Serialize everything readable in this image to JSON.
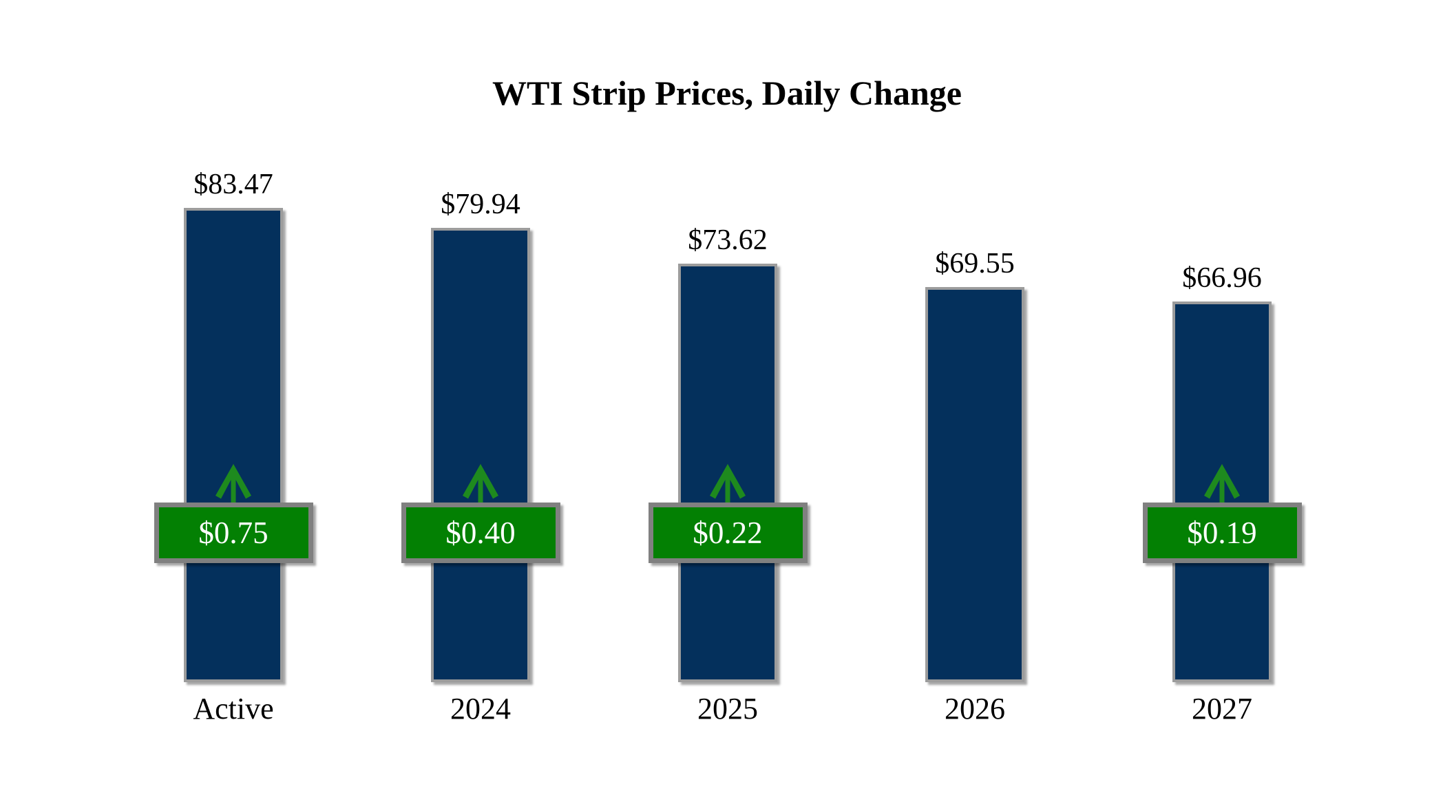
{
  "title": "WTI Strip Prices, Daily Change",
  "chart_data": {
    "type": "bar",
    "title": "WTI Strip Prices, Daily Change",
    "categories": [
      "Active",
      "2024",
      "2025",
      "2026",
      "2027"
    ],
    "series": [
      {
        "name": "strip_price",
        "values": [
          83.47,
          79.94,
          73.62,
          69.55,
          66.96
        ],
        "labels": [
          "$83.47",
          "$79.94",
          "$73.62",
          "$69.55",
          "$66.96"
        ],
        "label_position": "above-bar"
      },
      {
        "name": "daily_change",
        "values": [
          0.75,
          0.4,
          0.22,
          null,
          0.19
        ],
        "labels": [
          "$0.75",
          "$0.40",
          "$0.22",
          null,
          "$0.19"
        ],
        "direction": "up",
        "display": "green-badge-with-up-arrow"
      }
    ],
    "ylim": [
      0,
      90
    ],
    "xlabel": "",
    "ylabel": "",
    "grid": false,
    "legend": false,
    "axes_visible": false
  },
  "colors": {
    "background": "#ffffff",
    "text": "#000000",
    "bar_fill": "#04305c",
    "bar_border": "#9c9c9c",
    "badge_fill": "#038003",
    "badge_border": "#808080",
    "badge_text": "#ffffff",
    "arrow": "#1e8a1e"
  }
}
